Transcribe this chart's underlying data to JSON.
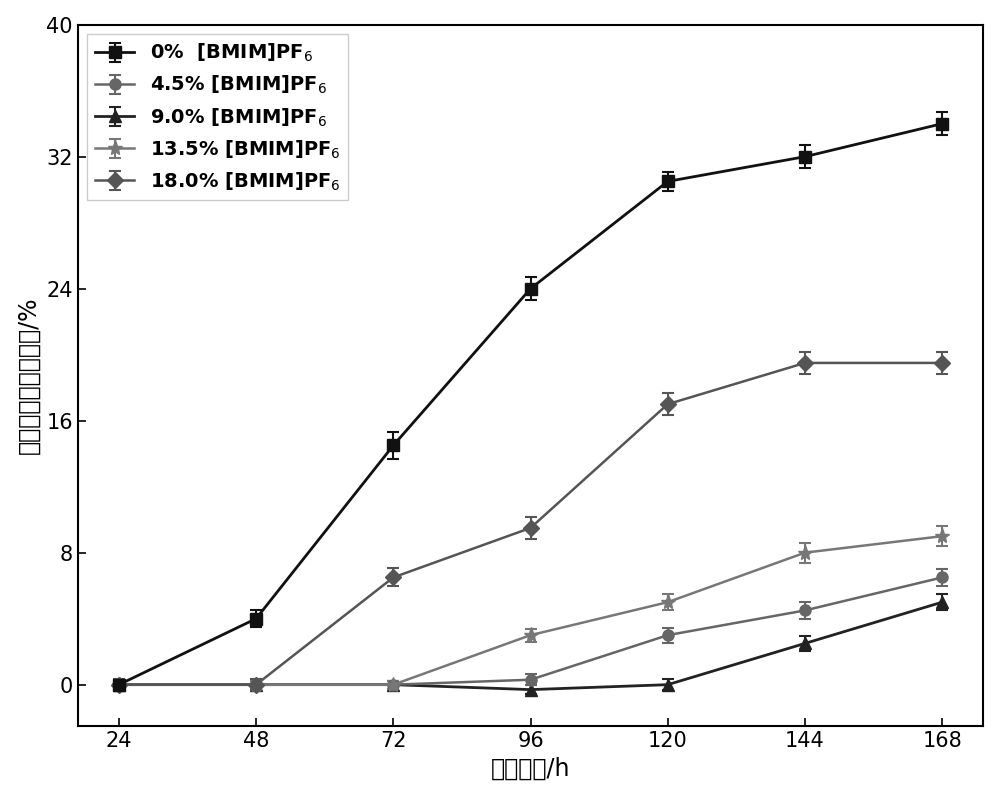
{
  "x": [
    24,
    48,
    72,
    96,
    120,
    144,
    168
  ],
  "series": [
    {
      "label": "0%  [BMIM]PF$_6$",
      "y": [
        0.0,
        4.0,
        14.5,
        24.0,
        30.5,
        32.0,
        34.0
      ],
      "yerr": [
        0.3,
        0.5,
        0.8,
        0.7,
        0.6,
        0.7,
        0.7
      ],
      "color": "#111111",
      "marker": "s",
      "markersize": 8,
      "linewidth": 2.0,
      "zorder": 5
    },
    {
      "label": "4.5% [BMIM]PF$_6$",
      "y": [
        0.0,
        0.0,
        0.0,
        0.3,
        3.0,
        4.5,
        6.5
      ],
      "yerr": [
        0.25,
        0.25,
        0.25,
        0.35,
        0.45,
        0.5,
        0.5
      ],
      "color": "#666666",
      "marker": "o",
      "markersize": 8,
      "linewidth": 1.8,
      "zorder": 4
    },
    {
      "label": "9.0% [BMIM]PF$_6$",
      "y": [
        0.0,
        0.0,
        0.0,
        -0.3,
        0.0,
        2.5,
        5.0
      ],
      "yerr": [
        0.25,
        0.25,
        0.25,
        0.25,
        0.35,
        0.45,
        0.5
      ],
      "color": "#222222",
      "marker": "^",
      "markersize": 9,
      "linewidth": 2.0,
      "zorder": 3
    },
    {
      "label": "13.5% [BMIM]PF$_6$",
      "y": [
        0.0,
        0.0,
        0.0,
        3.0,
        5.0,
        8.0,
        9.0
      ],
      "yerr": [
        0.25,
        0.25,
        0.25,
        0.4,
        0.5,
        0.6,
        0.6
      ],
      "color": "#777777",
      "marker": "*",
      "markersize": 11,
      "linewidth": 1.8,
      "zorder": 4
    },
    {
      "label": "18.0% [BMIM]PF$_6$",
      "y": [
        0.0,
        0.0,
        6.5,
        9.5,
        17.0,
        19.5,
        19.5
      ],
      "yerr": [
        0.35,
        0.35,
        0.55,
        0.65,
        0.65,
        0.65,
        0.65
      ],
      "color": "#555555",
      "marker": "D",
      "markersize": 8,
      "linewidth": 1.8,
      "zorder": 4
    }
  ],
  "xlabel": "振荡时间/h",
  "ylabel": "微囊化细胞的破损率/%",
  "ylim": [
    -2.5,
    40
  ],
  "yticks": [
    0,
    8,
    16,
    24,
    32,
    40
  ],
  "xticks": [
    24,
    48,
    72,
    96,
    120,
    144,
    168
  ],
  "legend_fontsize": 14,
  "axis_fontsize": 17,
  "tick_fontsize": 15,
  "background_color": "#ffffff"
}
